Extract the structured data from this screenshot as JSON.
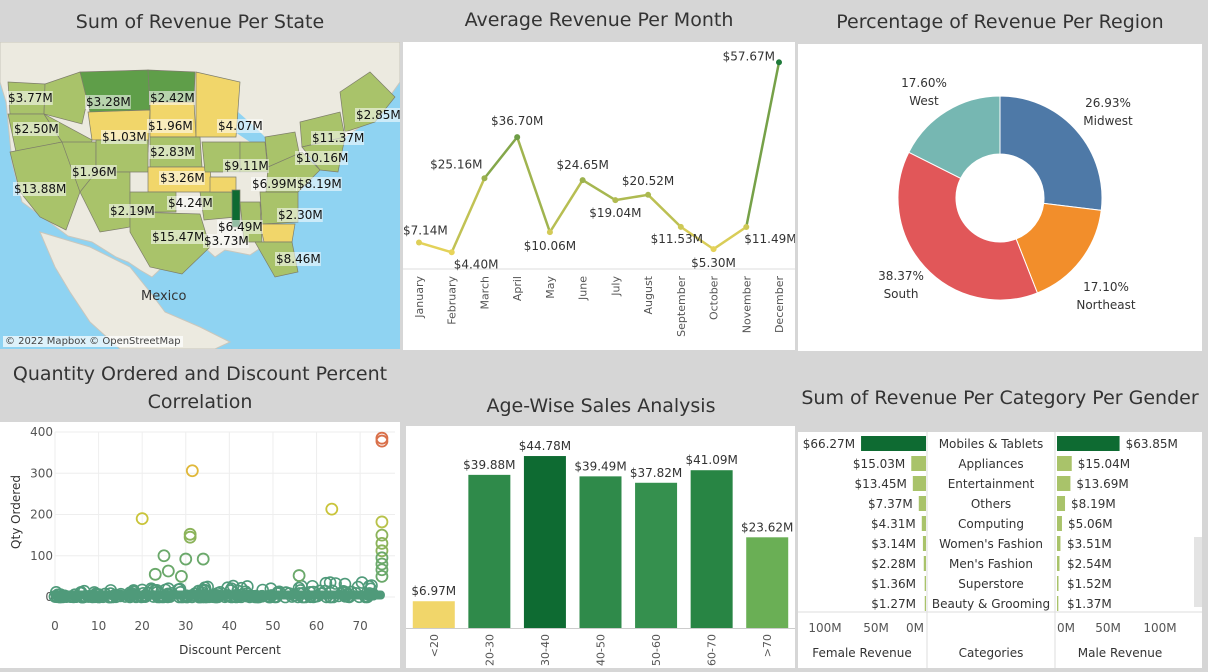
{
  "titles": {
    "state": "Sum of Revenue Per State",
    "month": "Average Revenue Per Month",
    "region": "Percentage of Revenue Per Region",
    "qty_line1": "Quantity Ordered and Discount Percent",
    "qty_line2": "Correlation",
    "age": "Age-Wise Sales Analysis",
    "category": "Sum of Revenue Per Category Per Gender"
  },
  "map": {
    "attribution": "© 2022 Mapbox © OpenStreetMap",
    "mexico_label": "Mexico",
    "state_labels": [
      {
        "text": "$3.77M"
      },
      {
        "text": "$3.28M"
      },
      {
        "text": "$2.42M"
      },
      {
        "text": "$2.85M"
      },
      {
        "text": "$2.50M"
      },
      {
        "text": "$1.03M"
      },
      {
        "text": "$1.96M"
      },
      {
        "text": "$4.07M"
      },
      {
        "text": "$11.37M"
      },
      {
        "text": "$2.83M"
      },
      {
        "text": "$10.16M"
      },
      {
        "text": "$1.96M"
      },
      {
        "text": "$9.11M"
      },
      {
        "text": "$3.26M"
      },
      {
        "text": "$6.99M"
      },
      {
        "text": "$8.19M"
      },
      {
        "text": "$13.88M"
      },
      {
        "text": "$4.24M"
      },
      {
        "text": "$2.19M"
      },
      {
        "text": "$6.49M"
      },
      {
        "text": "$2.30M"
      },
      {
        "text": "$15.47M"
      },
      {
        "text": "$3.73M"
      },
      {
        "text": "$8.46M"
      }
    ],
    "colors": {
      "water": "#8fd3f2",
      "land": "#eceae0",
      "low": "#f1d66a",
      "mid": "#a9c36a",
      "high": "#5f9e49",
      "max": "#0e6b32"
    }
  },
  "chart_data": [
    {
      "id": "month",
      "type": "line",
      "title": "Average Revenue Per Month",
      "categories": [
        "January",
        "February",
        "March",
        "April",
        "May",
        "June",
        "July",
        "August",
        "September",
        "October",
        "November",
        "December"
      ],
      "values": [
        7.14,
        4.4,
        25.16,
        36.7,
        10.06,
        24.65,
        19.04,
        20.52,
        11.53,
        5.3,
        11.49,
        57.67
      ],
      "data_labels": [
        "$7.14M",
        "$4.40M",
        "$25.16M",
        "$36.70M",
        "$10.06M",
        "$24.65M",
        "$19.04M",
        "$20.52M",
        "$11.53M",
        "$5.30M",
        "$11.49M",
        "$57.67M"
      ],
      "ylim": [
        0,
        60
      ],
      "colors": {
        "low": "#e8d45a",
        "high": "#1f7a3a"
      }
    },
    {
      "id": "region",
      "type": "pie",
      "title": "Percentage of Revenue Per Region",
      "slices": [
        {
          "name": "Midwest",
          "value": 26.93,
          "label": "26.93%",
          "color": "#4e79a7"
        },
        {
          "name": "Northeast",
          "value": 17.1,
          "label": "17.10%",
          "color": "#f28e2b"
        },
        {
          "name": "South",
          "value": 38.37,
          "label": "38.37%",
          "color": "#e15759"
        },
        {
          "name": "West",
          "value": 17.6,
          "label": "17.60%",
          "color": "#76b7b2"
        }
      ]
    },
    {
      "id": "scatter",
      "type": "scatter",
      "xlabel": "Discount Percent",
      "ylabel": "Qty Ordered",
      "xlim": [
        0,
        78
      ],
      "ylim": [
        0,
        400
      ],
      "x_ticks": [
        0,
        10,
        20,
        30,
        40,
        50,
        60,
        70
      ],
      "y_ticks": [
        0,
        100,
        200,
        300,
        400
      ],
      "outliers": [
        {
          "x": 75,
          "y": 385,
          "color": "#d9704a"
        },
        {
          "x": 75,
          "y": 378,
          "color": "#d9704a"
        },
        {
          "x": 31.5,
          "y": 306,
          "color": "#e0b83a"
        },
        {
          "x": 63.5,
          "y": 213,
          "color": "#c9c43a"
        },
        {
          "x": 20,
          "y": 190,
          "color": "#c9c43a"
        },
        {
          "x": 75,
          "y": 182,
          "color": "#b8c24a"
        },
        {
          "x": 31,
          "y": 152,
          "color": "#8bb35a"
        },
        {
          "x": 31,
          "y": 145,
          "color": "#8bb35a"
        },
        {
          "x": 75,
          "y": 150,
          "color": "#8bb35a"
        },
        {
          "x": 75,
          "y": 130,
          "color": "#8bb35a"
        },
        {
          "x": 75,
          "y": 112,
          "color": "#8bb35a"
        },
        {
          "x": 25,
          "y": 100,
          "color": "#6aa86a"
        },
        {
          "x": 30,
          "y": 92,
          "color": "#6aa86a"
        },
        {
          "x": 34,
          "y": 92,
          "color": "#6aa86a"
        },
        {
          "x": 75,
          "y": 95,
          "color": "#6aa86a"
        },
        {
          "x": 75,
          "y": 80,
          "color": "#6aa86a"
        },
        {
          "x": 75,
          "y": 66,
          "color": "#6aa86a"
        },
        {
          "x": 26,
          "y": 63,
          "color": "#6aa86a"
        },
        {
          "x": 23,
          "y": 55,
          "color": "#6aa86a"
        },
        {
          "x": 29,
          "y": 50,
          "color": "#6aa86a"
        },
        {
          "x": 56,
          "y": 52,
          "color": "#6aa86a"
        },
        {
          "x": 75,
          "y": 50,
          "color": "#6aa86a"
        }
      ],
      "cluster": {
        "x_from": 0,
        "x_to": 75,
        "y_min": 0,
        "y_max": 40,
        "color": "#4f9a7a"
      }
    },
    {
      "id": "age",
      "type": "bar",
      "title": "Age-Wise Sales Analysis",
      "categories": [
        "<20",
        "20-30",
        "30-40",
        "40-50",
        "50-60",
        "60-70",
        ">70"
      ],
      "values": [
        6.97,
        39.88,
        44.78,
        39.49,
        37.82,
        41.09,
        23.62
      ],
      "data_labels": [
        "$6.97M",
        "$39.88M",
        "$44.78M",
        "$39.49M",
        "$37.82M",
        "$41.09M",
        "$23.62M"
      ],
      "colors": [
        "#f1d66a",
        "#2f8a4a",
        "#0e6b32",
        "#2f8a4a",
        "#35904e",
        "#288544",
        "#6aaf55"
      ],
      "ylim": [
        0,
        50
      ]
    },
    {
      "id": "category",
      "type": "bar",
      "title": "Sum of Revenue Per Category Per Gender",
      "categories": [
        "Mobiles & Tablets",
        "Appliances",
        "Entertainment",
        "Others",
        "Computing",
        "Women's Fashion",
        "Men's Fashion",
        "Superstore",
        "Beauty & Grooming"
      ],
      "series": [
        {
          "name": "Female Revenue",
          "values": [
            66.27,
            15.03,
            13.45,
            7.37,
            4.31,
            3.14,
            2.28,
            1.36,
            1.27
          ],
          "labels": [
            "$66.27M",
            "$15.03M",
            "$13.45M",
            "$7.37M",
            "$4.31M",
            "$3.14M",
            "$2.28M",
            "$1.36M",
            "$1.27M"
          ]
        },
        {
          "name": "Male Revenue",
          "values": [
            63.85,
            15.04,
            13.69,
            8.19,
            5.06,
            3.51,
            2.54,
            1.52,
            1.37
          ],
          "labels": [
            "$63.85M",
            "$15.04M",
            "$13.69M",
            "$8.19M",
            "$5.06M",
            "$3.51M",
            "$2.54M",
            "$1.52M",
            "$1.37M"
          ]
        }
      ],
      "axis_left_ticks": [
        "100M",
        "50M",
        "0M"
      ],
      "axis_right_ticks": [
        "0M",
        "50M",
        "100M"
      ],
      "category_header": "Categories",
      "xlim": [
        0,
        100
      ]
    }
  ]
}
